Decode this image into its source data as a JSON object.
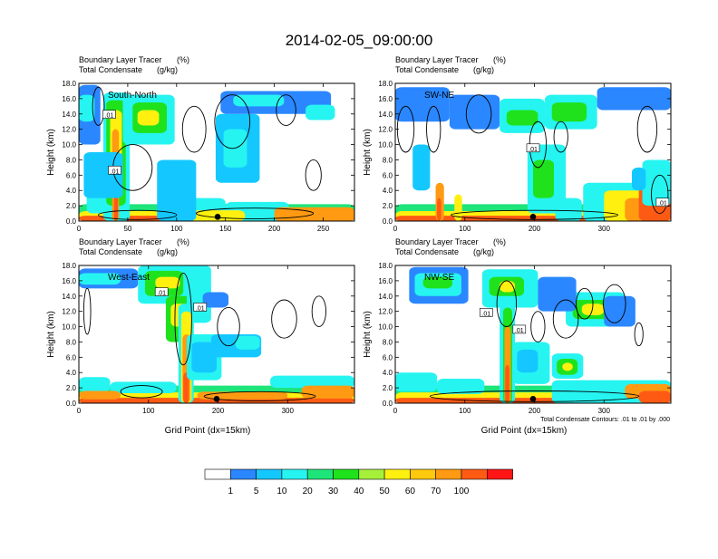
{
  "figure": {
    "main_title": "2014-02-05_09:00:00",
    "contour_note": "Total Condensate Contours: .01 to .01 by .000",
    "colorbar": {
      "labels": [
        "1",
        "5",
        "10",
        "20",
        "30",
        "40",
        "50",
        "60",
        "70",
        "100"
      ],
      "colors": [
        "#ffffff",
        "#2a87ff",
        "#14c8ff",
        "#26f4f1",
        "#1ee57a",
        "#1fe21c",
        "#a6f03a",
        "#fff00f",
        "#ffc90e",
        "#ff9a12",
        "#ff5a14",
        "#ff1515"
      ]
    }
  },
  "chart_data": [
    {
      "type": "heatmap",
      "panel_label": "South-North",
      "title_line1": "Boundary Layer Tracer",
      "title_unit1": "(%)",
      "title_line2": "Total Condensate",
      "title_unit2": "(g/kg)",
      "ylabel": "Height (km)",
      "xlabel": "",
      "xlim": [
        0,
        282
      ],
      "ylim": [
        0,
        18
      ],
      "xticks": [
        "0",
        "50",
        "100",
        "150",
        "200",
        "250"
      ],
      "xtick_values": [
        0,
        50,
        100,
        150,
        200,
        250
      ],
      "yticks": [
        "0.0",
        "2.0",
        "4.0",
        "6.0",
        "8.0",
        "10.0",
        "12.0",
        "14.0",
        "16.0",
        "18.0"
      ],
      "contour_labels": [
        ".01",
        ".01"
      ],
      "marker_x": 142
    },
    {
      "type": "heatmap",
      "panel_label": "SW-NE",
      "title_line1": "Boundary Layer Tracer",
      "title_unit1": "(%)",
      "title_line2": "Total Condensate",
      "title_unit2": "(g/kg)",
      "ylabel": "Height (km)",
      "xlabel": "",
      "xlim": [
        0,
        396
      ],
      "ylim": [
        0,
        18
      ],
      "xticks": [
        "0",
        "100",
        "200",
        "300"
      ],
      "xtick_values": [
        0,
        100,
        200,
        300
      ],
      "yticks": [
        "0.0",
        "2.0",
        "4.0",
        "6.0",
        "8.0",
        "10.0",
        "12.0",
        "14.0",
        "16.0",
        "18.0"
      ],
      "contour_labels": [
        ".01",
        ".01"
      ],
      "marker_x": 198
    },
    {
      "type": "heatmap",
      "panel_label": "West-East",
      "title_line1": "Boundary Layer Tracer",
      "title_unit1": "(%)",
      "title_line2": "Total Condensate",
      "title_unit2": "(g/kg)",
      "ylabel": "Height (km)",
      "xlabel": "Grid Point (dx=15km)",
      "xlim": [
        0,
        396
      ],
      "ylim": [
        0,
        18
      ],
      "xticks": [
        "0",
        "100",
        "200",
        "300"
      ],
      "xtick_values": [
        0,
        100,
        200,
        300
      ],
      "yticks": [
        "0.0",
        "2.0",
        "4.0",
        "6.0",
        "8.0",
        "10.0",
        "12.0",
        "14.0",
        "16.0",
        "18.0"
      ],
      "contour_labels": [
        ".01",
        ".01"
      ],
      "marker_x": 198
    },
    {
      "type": "heatmap",
      "panel_label": "NW-SE",
      "title_line1": "Boundary Layer Tracer",
      "title_unit1": "(%)",
      "title_line2": "Total Condensate",
      "title_unit2": "(g/kg)",
      "ylabel": "Height (km)",
      "xlabel": "Grid Point (dx=15km)",
      "xlim": [
        0,
        396
      ],
      "ylim": [
        0,
        18
      ],
      "xticks": [
        "0",
        "100",
        "200",
        "300"
      ],
      "xtick_values": [
        0,
        100,
        200,
        300
      ],
      "yticks": [
        "0.0",
        "2.0",
        "4.0",
        "6.0",
        "8.0",
        "10.0",
        "12.0",
        "14.0",
        "16.0",
        "18.0"
      ],
      "contour_labels": [
        ".01",
        ".01"
      ],
      "marker_x": 198
    }
  ]
}
